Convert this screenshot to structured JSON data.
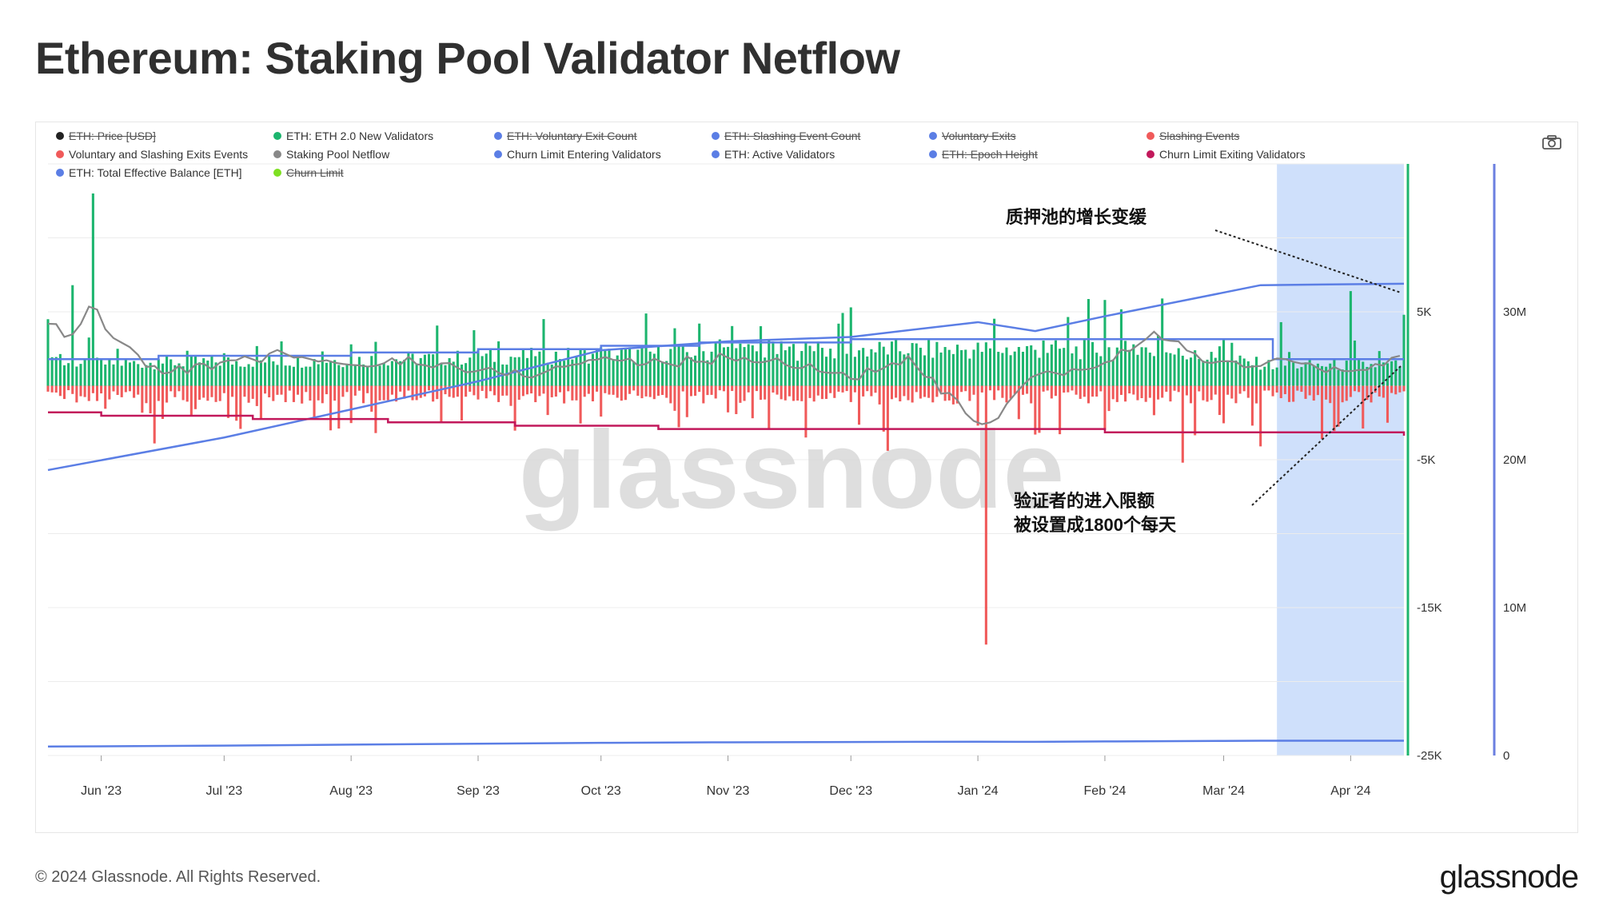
{
  "title": "Ethereum: Staking Pool Validator Netflow",
  "legend": [
    {
      "label": "ETH: Price [USD]",
      "color": "#222222",
      "enabled": false
    },
    {
      "label": "ETH: ETH 2.0 New Validators",
      "color": "#1cb56e",
      "enabled": true
    },
    {
      "label": "ETH: Voluntary Exit Count",
      "color": "#5b7ee5",
      "enabled": false
    },
    {
      "label": "ETH: Slashing Event Count",
      "color": "#5b7ee5",
      "enabled": false
    },
    {
      "label": "Voluntary Exits",
      "color": "#5b7ee5",
      "enabled": false
    },
    {
      "label": "Slashing Events",
      "color": "#f05a5a",
      "enabled": false
    },
    {
      "label": "Voluntary and Slashing Exits Events",
      "color": "#f05a5a",
      "enabled": true
    },
    {
      "label": "Staking Pool Netflow",
      "color": "#888888",
      "enabled": true
    },
    {
      "label": "Churn Limit Entering Validators",
      "color": "#5b7ee5",
      "enabled": true
    },
    {
      "label": "ETH: Active Validators",
      "color": "#5b7ee5",
      "enabled": true
    },
    {
      "label": "ETH: Epoch Height",
      "color": "#5b7ee5",
      "enabled": false
    },
    {
      "label": "Churn Limit Exiting Validators",
      "color": "#c2185b",
      "enabled": true
    },
    {
      "label": "ETH: Total Effective Balance [ETH]",
      "color": "#5b7ee5",
      "enabled": true
    },
    {
      "label": "Churn Limit",
      "color": "#7ee022",
      "enabled": false
    }
  ],
  "annotations": {
    "growth_slowing": "质押池的增长变缓",
    "entry_limit_line1": "验证者的进入限额",
    "entry_limit_line2": "被设置成1800个每天"
  },
  "watermark": "glassnode",
  "footer": "© 2024 Glassnode. All Rights Reserved.",
  "logo": "glassnode",
  "colors": {
    "new_validators": "#1cb56e",
    "exits": "#f05a5a",
    "netflow": "#888888",
    "churn_enter": "#5b7ee5",
    "churn_exit": "#c2185b",
    "active_validators": "#5b7ee5",
    "total_balance": "#5b7ee5",
    "highlight": "#cfe0fb",
    "right_axis_green": "#1cb56e",
    "right_axis_blue": "#6b7fe0"
  },
  "chart_data": {
    "type": "bar",
    "x_tick_labels": [
      "Jun '23",
      "Jul '23",
      "Aug '23",
      "Sep '23",
      "Oct '23",
      "Nov '23",
      "Dec '23",
      "Jan '24",
      "Feb '24",
      "Mar '24",
      "Apr '24"
    ],
    "x_range": [
      "2023-05-19",
      "2024-04-14"
    ],
    "highlight_range": [
      "2024-03-14",
      "2024-04-14"
    ],
    "y_left": {
      "ticks": [
        5000,
        -5000,
        -15000,
        -25000
      ],
      "tick_labels": [
        "5K",
        "-5K",
        "-15K",
        "-25K"
      ],
      "range": [
        -25000,
        15000
      ]
    },
    "y_right": {
      "ticks": [
        30000000,
        20000000,
        10000000,
        0
      ],
      "tick_labels": [
        "30M",
        "20M",
        "10M",
        "0"
      ],
      "range": [
        0,
        40000000
      ]
    },
    "series": [
      {
        "name": "ETH: ETH 2.0 New Validators",
        "type": "bar",
        "axis": "left",
        "points": [
          [
            "2023-05-19",
            4500
          ],
          [
            "2023-05-25",
            6800
          ],
          [
            "2023-05-30",
            13000
          ],
          [
            "2023-06-05",
            2500
          ],
          [
            "2023-06-15",
            1800
          ],
          [
            "2023-07-01",
            2200
          ],
          [
            "2023-07-15",
            3000
          ],
          [
            "2023-08-01",
            2800
          ],
          [
            "2023-08-15",
            2200
          ],
          [
            "2023-09-01",
            2400
          ],
          [
            "2023-09-15",
            2000
          ],
          [
            "2023-10-01",
            2600
          ],
          [
            "2023-10-15",
            2200
          ],
          [
            "2023-11-01",
            2500
          ],
          [
            "2023-11-15",
            2400
          ],
          [
            "2023-12-01",
            5300
          ],
          [
            "2023-12-15",
            2200
          ],
          [
            "2024-01-01",
            1500
          ],
          [
            "2024-01-15",
            2300
          ],
          [
            "2024-02-01",
            5800
          ],
          [
            "2024-02-15",
            5900
          ],
          [
            "2024-03-01",
            3200
          ],
          [
            "2024-03-15",
            4300
          ],
          [
            "2024-04-01",
            6400
          ],
          [
            "2024-04-14",
            4800
          ]
        ]
      },
      {
        "name": "Voluntary and Slashing Exits Events",
        "type": "bar",
        "axis": "left",
        "points": [
          [
            "2023-05-19",
            -400
          ],
          [
            "2023-06-10",
            -600
          ],
          [
            "2023-06-14",
            -3900
          ],
          [
            "2023-07-01",
            -500
          ],
          [
            "2023-08-01",
            -600
          ],
          [
            "2023-09-01",
            -700
          ],
          [
            "2023-10-01",
            -900
          ],
          [
            "2023-11-01",
            -1800
          ],
          [
            "2023-11-20",
            -3500
          ],
          [
            "2023-12-10",
            -4400
          ],
          [
            "2024-01-03",
            -17500
          ],
          [
            "2024-01-15",
            -3300
          ],
          [
            "2024-02-01",
            -3000
          ],
          [
            "2024-02-20",
            -5200
          ],
          [
            "2024-03-10",
            -4100
          ],
          [
            "2024-03-25",
            -3600
          ],
          [
            "2024-04-10",
            -2500
          ]
        ]
      },
      {
        "name": "Staking Pool Netflow",
        "type": "line",
        "axis": "left",
        "points": [
          [
            "2023-05-19",
            4200
          ],
          [
            "2023-05-25",
            3200
          ],
          [
            "2023-05-30",
            5500
          ],
          [
            "2023-06-05",
            2800
          ],
          [
            "2023-06-15",
            1000
          ],
          [
            "2023-07-01",
            1400
          ],
          [
            "2023-07-15",
            2200
          ],
          [
            "2023-08-01",
            1200
          ],
          [
            "2023-08-15",
            1800
          ],
          [
            "2023-09-01",
            1000
          ],
          [
            "2023-09-15",
            800
          ],
          [
            "2023-10-01",
            1900
          ],
          [
            "2023-10-15",
            1500
          ],
          [
            "2023-11-01",
            1900
          ],
          [
            "2023-11-15",
            1600
          ],
          [
            "2023-12-01",
            600
          ],
          [
            "2023-12-15",
            1700
          ],
          [
            "2024-01-03",
            -3000
          ],
          [
            "2024-01-15",
            600
          ],
          [
            "2024-02-01",
            1400
          ],
          [
            "2024-02-12",
            3600
          ],
          [
            "2024-03-01",
            1300
          ],
          [
            "2024-03-15",
            1700
          ],
          [
            "2024-04-01",
            800
          ],
          [
            "2024-04-14",
            1900
          ]
        ]
      },
      {
        "name": "Churn Limit Entering Validators",
        "type": "step",
        "axis": "left",
        "points": [
          [
            "2023-05-19",
            1800
          ],
          [
            "2023-06-15",
            2025
          ],
          [
            "2023-08-01",
            2250
          ],
          [
            "2023-09-01",
            2475
          ],
          [
            "2023-10-01",
            2700
          ],
          [
            "2023-10-25",
            2925
          ],
          [
            "2023-12-01",
            3150
          ],
          [
            "2024-01-01",
            3150
          ],
          [
            "2024-02-10",
            3150
          ],
          [
            "2024-03-13",
            1800
          ],
          [
            "2024-04-14",
            1800
          ]
        ]
      },
      {
        "name": "Churn Limit Exiting Validators",
        "type": "step",
        "axis": "left",
        "points": [
          [
            "2023-05-19",
            -1800
          ],
          [
            "2023-06-01",
            -2025
          ],
          [
            "2023-07-08",
            -2250
          ],
          [
            "2023-08-10",
            -2475
          ],
          [
            "2023-09-10",
            -2700
          ],
          [
            "2023-10-15",
            -2925
          ],
          [
            "2024-01-01",
            -2925
          ],
          [
            "2024-02-01",
            -3150
          ],
          [
            "2024-04-14",
            -3375
          ]
        ]
      },
      {
        "name": "ETH: Active Validators",
        "type": "line",
        "axis": "right",
        "points": [
          [
            "2023-05-19",
            605000
          ],
          [
            "2023-07-01",
            668000
          ],
          [
            "2023-08-01",
            735000
          ],
          [
            "2023-09-01",
            795000
          ],
          [
            "2023-10-01",
            858000
          ],
          [
            "2023-11-01",
            895000
          ],
          [
            "2023-12-01",
            910000
          ],
          [
            "2024-01-01",
            935000
          ],
          [
            "2024-01-15",
            925000
          ],
          [
            "2024-02-01",
            950000
          ],
          [
            "2024-03-01",
            985000
          ],
          [
            "2024-03-10",
            1000000
          ],
          [
            "2024-04-14",
            1003000
          ]
        ]
      },
      {
        "name": "ETH: Total Effective Balance [ETH]",
        "type": "line",
        "axis": "right",
        "points": [
          [
            "2023-05-19",
            19300000
          ],
          [
            "2023-07-01",
            21500000
          ],
          [
            "2023-08-01",
            23400000
          ],
          [
            "2023-09-01",
            25300000
          ],
          [
            "2023-10-01",
            27400000
          ],
          [
            "2023-11-01",
            28000000
          ],
          [
            "2023-12-01",
            28300000
          ],
          [
            "2024-01-01",
            29300000
          ],
          [
            "2024-01-15",
            28700000
          ],
          [
            "2024-02-01",
            29700000
          ],
          [
            "2024-03-01",
            31300000
          ],
          [
            "2024-03-10",
            31800000
          ],
          [
            "2024-04-14",
            31900000
          ]
        ]
      }
    ]
  }
}
